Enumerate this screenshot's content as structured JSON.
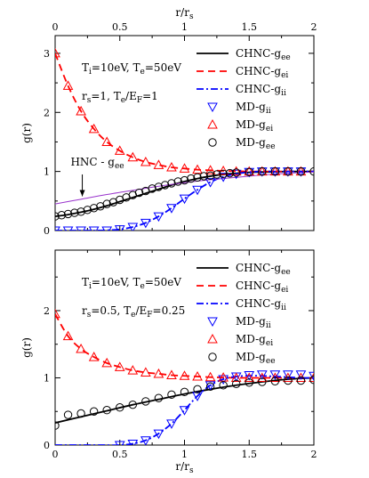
{
  "chart_data": [
    {
      "type": "line",
      "panel": "top",
      "xlabel_top": "r/r_s",
      "ylabel": "g(r)",
      "xlim": [
        0,
        2
      ],
      "ylim": [
        0,
        3.3
      ],
      "xticks": [
        "0",
        "0.5",
        "1",
        "1.5",
        "2"
      ],
      "yticks": [
        "0",
        "1",
        "2",
        "3"
      ],
      "annotations": [
        {
          "text": "T",
          "sub": "i",
          "rest": "=10eV,  T",
          "sub2": "e",
          "rest2": "=50eV"
        },
        {
          "text": "r",
          "sub": "s",
          "rest": "=1,  T",
          "sub2": "e",
          "rest2": "/E",
          "sub3": "F",
          "rest3": "=1"
        }
      ],
      "arrow_label": {
        "main": "HNC - g",
        "sub": "ee",
        "color": "#9933cc"
      },
      "legend": [
        {
          "main": "CHNC-g",
          "sub": "ee",
          "style": "solid",
          "color": "#000000"
        },
        {
          "main": "CHNC-g",
          "sub": "ei",
          "style": "dashed",
          "color": "#ff0000"
        },
        {
          "main": "CHNC-g",
          "sub": "ii",
          "style": "dashdot",
          "color": "#0000ff"
        },
        {
          "main": "MD-g",
          "sub": "ii",
          "marker": "triangle-down",
          "color": "#0000ff"
        },
        {
          "main": "MD-g",
          "sub": "ei",
          "marker": "triangle-up",
          "color": "#ff0000"
        },
        {
          "main": "MD-g",
          "sub": "ee",
          "marker": "circle",
          "color": "#000000"
        }
      ],
      "series": [
        {
          "name": "CHNC-g_ee",
          "color": "#000000",
          "style": "solid",
          "x": [
            0,
            0.1,
            0.2,
            0.3,
            0.4,
            0.5,
            0.6,
            0.7,
            0.8,
            0.9,
            1.0,
            1.1,
            1.2,
            1.3,
            1.4,
            1.5,
            1.6,
            1.7,
            1.8,
            1.9,
            2.0
          ],
          "y": [
            0.24,
            0.27,
            0.31,
            0.36,
            0.42,
            0.49,
            0.56,
            0.63,
            0.7,
            0.77,
            0.83,
            0.88,
            0.92,
            0.95,
            0.97,
            0.985,
            0.99,
            0.995,
            1.0,
            1.0,
            1.0
          ]
        },
        {
          "name": "CHNC-g_ei",
          "color": "#ff0000",
          "style": "dashed",
          "x": [
            0,
            0.1,
            0.2,
            0.3,
            0.4,
            0.5,
            0.6,
            0.7,
            0.8,
            0.9,
            1.0,
            1.1,
            1.2,
            1.3,
            1.4,
            1.5,
            1.6,
            1.7,
            1.8,
            1.9,
            2.0
          ],
          "y": [
            3.0,
            2.45,
            2.02,
            1.72,
            1.5,
            1.35,
            1.24,
            1.16,
            1.11,
            1.07,
            1.05,
            1.03,
            1.02,
            1.01,
            1.005,
            1.0,
            1.0,
            1.0,
            1.0,
            1.0,
            1.0
          ]
        },
        {
          "name": "CHNC-g_ii",
          "color": "#0000ff",
          "style": "dashdot",
          "x": [
            0,
            0.1,
            0.2,
            0.3,
            0.4,
            0.5,
            0.6,
            0.7,
            0.8,
            0.9,
            1.0,
            1.1,
            1.2,
            1.3,
            1.4,
            1.5,
            1.6,
            1.7,
            1.8,
            1.9,
            2.0
          ],
          "y": [
            0,
            0,
            0,
            0,
            0.005,
            0.02,
            0.06,
            0.13,
            0.24,
            0.38,
            0.54,
            0.69,
            0.82,
            0.91,
            0.96,
            0.99,
            1.0,
            1.0,
            1.0,
            1.0,
            1.0
          ]
        },
        {
          "name": "HNC-g_ee",
          "color": "#9933cc",
          "style": "solid",
          "x": [
            0,
            0.2,
            0.4,
            0.6,
            0.8,
            1.0,
            1.2,
            1.4,
            1.6,
            1.8,
            2.0
          ],
          "y": [
            0.45,
            0.53,
            0.61,
            0.68,
            0.75,
            0.81,
            0.86,
            0.9,
            0.94,
            0.97,
            0.99
          ]
        },
        {
          "name": "MD-g_ii",
          "color": "#0000ff",
          "marker": "triangle-down",
          "x": [
            0,
            0.1,
            0.2,
            0.3,
            0.4,
            0.5,
            0.6,
            0.7,
            0.8,
            0.9,
            1.0,
            1.1,
            1.2,
            1.3,
            1.4,
            1.5,
            1.6,
            1.7,
            1.8,
            1.9
          ],
          "y": [
            0,
            0,
            0,
            0,
            0,
            0.02,
            0.06,
            0.13,
            0.24,
            0.38,
            0.54,
            0.69,
            0.82,
            0.91,
            0.96,
            0.99,
            1.0,
            1.0,
            1.0,
            1.0
          ]
        },
        {
          "name": "MD-g_ei",
          "color": "#ff0000",
          "marker": "triangle-up",
          "x": [
            0,
            0.1,
            0.2,
            0.3,
            0.4,
            0.5,
            0.6,
            0.7,
            0.8,
            0.9,
            1.0,
            1.1,
            1.2,
            1.3,
            1.4,
            1.5,
            1.6,
            1.7,
            1.8,
            1.9
          ],
          "y": [
            3.0,
            2.45,
            2.02,
            1.72,
            1.5,
            1.35,
            1.24,
            1.16,
            1.11,
            1.07,
            1.05,
            1.03,
            1.02,
            1.01,
            1.0,
            1.0,
            1.0,
            1.0,
            1.0,
            1.0
          ]
        },
        {
          "name": "MD-g_ee",
          "color": "#000000",
          "marker": "circle",
          "x": [
            0,
            0.05,
            0.1,
            0.15,
            0.2,
            0.25,
            0.3,
            0.35,
            0.4,
            0.45,
            0.5,
            0.55,
            0.6,
            0.65,
            0.7,
            0.75,
            0.8,
            0.85,
            0.9,
            0.95,
            1.0,
            1.05,
            1.1,
            1.15,
            1.2,
            1.25,
            1.3,
            1.35,
            1.4,
            1.5,
            1.6,
            1.7,
            1.8,
            1.9,
            2.0
          ],
          "y": [
            0.24,
            0.26,
            0.28,
            0.3,
            0.32,
            0.35,
            0.38,
            0.41,
            0.45,
            0.48,
            0.52,
            0.56,
            0.6,
            0.64,
            0.67,
            0.71,
            0.74,
            0.77,
            0.8,
            0.83,
            0.85,
            0.88,
            0.9,
            0.92,
            0.93,
            0.95,
            0.96,
            0.97,
            0.98,
            0.99,
            1.0,
            1.0,
            1.0,
            1.0,
            1.0
          ]
        }
      ]
    },
    {
      "type": "line",
      "panel": "bottom",
      "xlabel": "r/r_s",
      "ylabel": "g(r)",
      "xlim": [
        0,
        2
      ],
      "ylim": [
        0,
        2.9
      ],
      "xticks": [
        "0",
        "0.5",
        "1",
        "1.5",
        "2"
      ],
      "yticks": [
        "0",
        "1",
        "2"
      ],
      "annotations": [
        {
          "text": "T",
          "sub": "i",
          "rest": "=10eV,  T",
          "sub2": "e",
          "rest2": "=50eV"
        },
        {
          "text": "r",
          "sub": "s",
          "rest": "=0.5,  T",
          "sub2": "e",
          "rest2": "/E",
          "sub3": "F",
          "rest3": "=0.25"
        }
      ],
      "legend": [
        {
          "main": "CHNC-g",
          "sub": "ee",
          "style": "solid",
          "color": "#000000"
        },
        {
          "main": "CHNC-g",
          "sub": "ei",
          "style": "dashed",
          "color": "#ff0000"
        },
        {
          "main": "CHNC-g",
          "sub": "ii",
          "style": "dashdot",
          "color": "#0000ff"
        },
        {
          "main": "MD-g",
          "sub": "ii",
          "marker": "triangle-down",
          "color": "#0000ff"
        },
        {
          "main": "MD-g",
          "sub": "ei",
          "marker": "triangle-up",
          "color": "#ff0000"
        },
        {
          "main": "MD-g",
          "sub": "ee",
          "marker": "circle",
          "color": "#000000"
        }
      ],
      "series": [
        {
          "name": "CHNC-g_ee",
          "color": "#000000",
          "style": "solid",
          "x": [
            0,
            0.2,
            0.4,
            0.6,
            0.8,
            1.0,
            1.2,
            1.4,
            1.6,
            1.8,
            2.0
          ],
          "y": [
            0.33,
            0.42,
            0.51,
            0.6,
            0.68,
            0.76,
            0.83,
            0.89,
            0.94,
            0.98,
            1.0
          ]
        },
        {
          "name": "CHNC-g_ei",
          "color": "#ff0000",
          "style": "dashed",
          "x": [
            0,
            0.1,
            0.2,
            0.3,
            0.4,
            0.5,
            0.6,
            0.7,
            0.8,
            0.9,
            1.0,
            1.1,
            1.2,
            1.3,
            1.4,
            1.5,
            1.6,
            1.7,
            1.8,
            1.9,
            2.0
          ],
          "y": [
            1.95,
            1.62,
            1.43,
            1.31,
            1.22,
            1.16,
            1.11,
            1.08,
            1.06,
            1.04,
            1.03,
            1.02,
            1.01,
            1.005,
            1.0,
            1.0,
            1.0,
            1.0,
            1.0,
            1.0,
            1.0
          ]
        },
        {
          "name": "CHNC-g_ii",
          "color": "#0000ff",
          "style": "dashdot",
          "x": [
            0,
            0.3,
            0.5,
            0.6,
            0.7,
            0.8,
            0.9,
            1.0,
            1.1,
            1.2,
            1.3,
            1.4,
            1.5,
            1.6,
            1.7,
            1.8,
            1.9,
            2.0
          ],
          "y": [
            0,
            0,
            0.0,
            0.02,
            0.07,
            0.17,
            0.32,
            0.52,
            0.73,
            0.89,
            0.98,
            1.02,
            1.03,
            1.03,
            1.02,
            1.01,
            1.0,
            1.0
          ]
        },
        {
          "name": "MD-g_ii",
          "color": "#0000ff",
          "marker": "triangle-down",
          "x": [
            0.5,
            0.6,
            0.7,
            0.8,
            0.9,
            1.0,
            1.1,
            1.2,
            1.3,
            1.4,
            1.5,
            1.6,
            1.7,
            1.8,
            1.9,
            2.0
          ],
          "y": [
            0.0,
            0.02,
            0.07,
            0.17,
            0.32,
            0.52,
            0.73,
            0.89,
            0.98,
            1.02,
            1.04,
            1.05,
            1.05,
            1.05,
            1.05,
            1.03
          ]
        },
        {
          "name": "MD-g_ei",
          "color": "#ff0000",
          "marker": "triangle-up",
          "x": [
            0,
            0.1,
            0.2,
            0.3,
            0.4,
            0.5,
            0.6,
            0.7,
            0.8,
            0.9,
            1.0,
            1.1,
            1.2,
            1.3,
            1.4,
            1.5,
            1.6,
            1.7,
            1.8,
            1.9,
            2.0
          ],
          "y": [
            1.95,
            1.62,
            1.43,
            1.31,
            1.22,
            1.16,
            1.11,
            1.08,
            1.06,
            1.04,
            1.03,
            1.02,
            1.01,
            1.005,
            1.0,
            1.0,
            1.0,
            1.0,
            1.0,
            1.0,
            1.0
          ]
        },
        {
          "name": "MD-g_ee",
          "color": "#000000",
          "marker": "circle",
          "x": [
            0,
            0.1,
            0.2,
            0.3,
            0.4,
            0.5,
            0.6,
            0.7,
            0.8,
            0.9,
            1.0,
            1.1,
            1.2,
            1.3,
            1.4,
            1.5,
            1.6,
            1.7,
            1.8,
            1.9,
            2.0
          ],
          "y": [
            0.29,
            0.45,
            0.47,
            0.5,
            0.52,
            0.56,
            0.6,
            0.65,
            0.7,
            0.75,
            0.79,
            0.83,
            0.87,
            0.89,
            0.91,
            0.93,
            0.94,
            0.95,
            0.96,
            0.96,
            0.97
          ]
        }
      ]
    }
  ]
}
